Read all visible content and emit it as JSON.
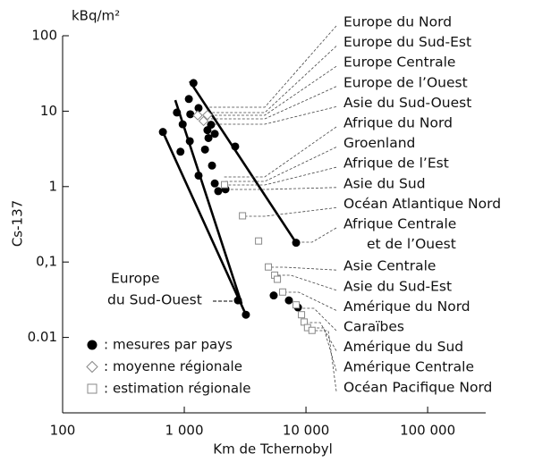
{
  "chart_data": {
    "type": "scatter",
    "unit_label": "kBq/m²",
    "ylabel": "Cs-137",
    "xlabel": "Km de Tchernobyl",
    "xscale": "log",
    "yscale": "log",
    "xlim": [
      100,
      300000
    ],
    "ylim": [
      0.001,
      100
    ],
    "xticks": [
      100,
      {
        "value": 1000,
        "label": "1 000"
      },
      {
        "value": 10000,
        "label": "10 000"
      },
      {
        "value": 100000,
        "label": "100 000"
      }
    ],
    "yticks": [
      100,
      10,
      1,
      {
        "value": 0.1,
        "label": "0,1"
      },
      0.01
    ],
    "legend_separator": ":",
    "series": [
      {
        "name": "mesures par pays",
        "marker": "circle",
        "color": "#000000",
        "x": [
          667,
          1190,
          1090,
          870,
          1120,
          1310,
          970,
          1660,
          1780,
          1550,
          1580,
          1110,
          930,
          1480,
          2620,
          1690,
          1310,
          1780,
          1900,
          2180,
          8300,
          5430,
          7240,
          8600,
          2760,
          3210
        ],
        "values": [
          5.3,
          23.6,
          14.5,
          9.6,
          9.1,
          11,
          6.7,
          6.6,
          5.0,
          5.6,
          4.4,
          4.0,
          2.9,
          3.1,
          3.4,
          1.9,
          1.4,
          1.1,
          0.87,
          0.92,
          0.18,
          0.036,
          0.031,
          0.025,
          0.031,
          0.02
        ]
      },
      {
        "name": "moyenne régionale",
        "marker": "diamond",
        "color": "#888888",
        "x": [
          1290,
          1550,
          1440
        ],
        "values": [
          8.8,
          8.9,
          7.4
        ]
      },
      {
        "name": "estimation régionale",
        "marker": "square",
        "color": "#888888",
        "x": [
          2140,
          3010,
          4080,
          4910,
          5530,
          5820,
          6440,
          8300,
          9190,
          9670,
          10300,
          11200
        ],
        "values": [
          1.06,
          0.41,
          0.19,
          0.086,
          0.067,
          0.059,
          0.04,
          0.027,
          0.02,
          0.016,
          0.0135,
          0.0124
        ]
      }
    ],
    "fit_lines": [
      {
        "x": [
          667,
          3210
        ],
        "values": [
          5.3,
          0.02
        ]
      },
      {
        "x": [
          843,
          2960
        ],
        "values": [
          14,
          0.028
        ]
      },
      {
        "x": [
          1110,
          8300
        ],
        "values": [
          24.9,
          0.18
        ]
      }
    ],
    "annotation": [
      "Europe",
      "du Sud-Ouest"
    ],
    "region_labels": [
      "Europe du Nord",
      "Europe du Sud-Est",
      "Europe Centrale",
      "Europe de l’Ouest",
      "Asie du Sud-Ouest",
      "Afrique du Nord",
      "Groenland",
      "Afrique de l’Est",
      "Asie du Sud",
      "Océan Atlantique Nord",
      "Afrique Centrale",
      "et de l’Ouest",
      "Asie Centrale",
      "Asie du Sud-Est",
      "Amérique du Nord",
      "Caraïbes",
      "Amérique du Sud",
      "Amérique Centrale",
      "Océan Pacifique Nord"
    ]
  }
}
